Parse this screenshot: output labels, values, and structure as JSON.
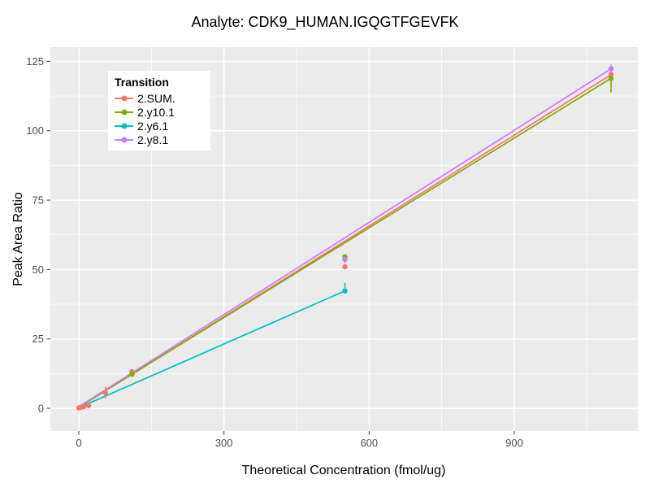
{
  "title": "Analyte: CDK9_HUMAN.IGQGTFGEVFK",
  "chart_data": {
    "type": "scatter",
    "title": "Analyte: CDK9_HUMAN.IGQGTFGEVFK",
    "xlabel": "Theoretical Concentration (fmol/ug)",
    "ylabel": "Peak Area Ratio",
    "xlim": [
      -58.8,
      1155.3
    ],
    "ylim": [
      -8.2,
      130.1
    ],
    "x_ticks": [
      0,
      300,
      600,
      900
    ],
    "x_minor_ticks": [
      150,
      450,
      750,
      1050
    ],
    "y_ticks": [
      0,
      25,
      50,
      75,
      100,
      125
    ],
    "y_minor_ticks": [
      12.5,
      37.5,
      62.5,
      87.5,
      112.5
    ],
    "grid": true,
    "legend_title": "Transition",
    "legend_position": "top-left-inside",
    "colors": {
      "panel_bg": "#EBEBEB",
      "grid": "#FFFFFF",
      "tick_label": "#4D4D4D",
      "tick_mark": "#333333",
      "text": "#000000"
    },
    "series": [
      {
        "name": "2.SUM.",
        "color": "#F8766D",
        "points": [
          [
            0,
            0.15
          ],
          [
            4,
            0.3
          ],
          [
            10,
            0.55
          ],
          [
            20,
            0.95
          ],
          [
            55,
            5.6
          ],
          [
            110,
            13.2
          ],
          [
            550,
            51.0
          ],
          [
            1100,
            120.3
          ]
        ],
        "error_bars": [
          [
            55,
            3.5,
            7.7
          ],
          [
            1100,
            118.6,
            121.6
          ]
        ],
        "fit_line": [
          [
            0,
            0.3
          ],
          [
            1100,
            120.2
          ]
        ]
      },
      {
        "name": "2.y10.1",
        "color": "#7CAE00",
        "points": [
          [
            110,
            12.3
          ],
          [
            550,
            54.6
          ],
          [
            1100,
            118.9
          ]
        ],
        "error_bars": [
          [
            1100,
            113.8,
            121.3
          ]
        ],
        "fit_line": [
          [
            0,
            0.4
          ],
          [
            1100,
            118.9
          ]
        ]
      },
      {
        "name": "2.y6.1",
        "color": "#00BFC4",
        "points": [
          [
            550,
            42.3
          ]
        ],
        "error_bars": [
          [
            550,
            41.5,
            45.2
          ]
        ],
        "fit_line": [
          [
            0,
            0.2
          ],
          [
            550,
            42.3
          ]
        ]
      },
      {
        "name": "2.y8.1",
        "color": "#C77CFF",
        "points": [
          [
            550,
            53.7
          ],
          [
            1100,
            122.3
          ]
        ],
        "error_bars": [
          [
            550,
            52.3,
            55.2
          ],
          [
            1100,
            120.8,
            123.9
          ]
        ],
        "fit_line": [
          [
            0,
            0.6
          ],
          [
            1100,
            122.3
          ]
        ]
      }
    ]
  }
}
